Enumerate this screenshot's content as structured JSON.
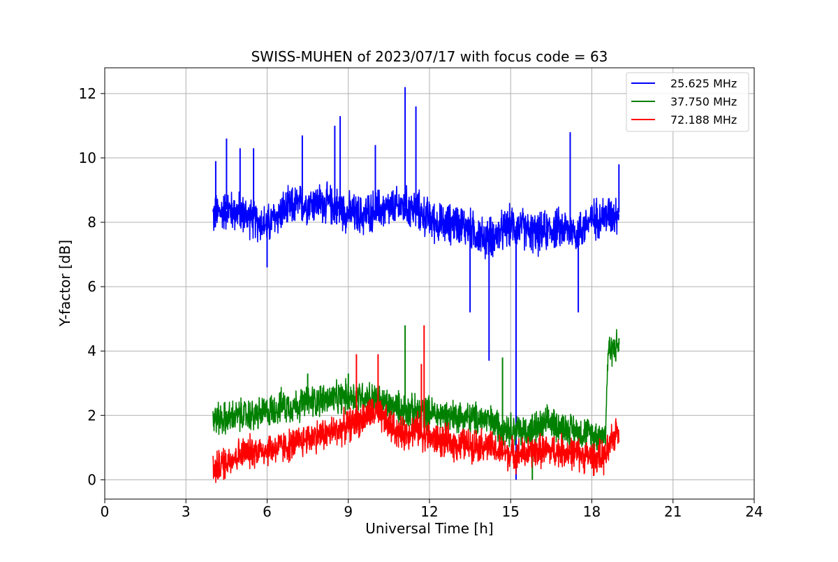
{
  "chart_data": {
    "type": "line",
    "title": "SWISS-MUHEN of 2023/07/17 with focus code = 63",
    "xlabel": "Universal Time [h]",
    "ylabel": "Y-factor [dB]",
    "xlim": [
      0,
      24
    ],
    "ylim": [
      -0.6,
      12.8
    ],
    "xticks": [
      "0",
      "3",
      "6",
      "9",
      "12",
      "15",
      "18",
      "21",
      "24"
    ],
    "yticks": [
      "0",
      "2",
      "4",
      "6",
      "8",
      "10",
      "12"
    ],
    "grid": true,
    "legend_position": "top-right",
    "series": [
      {
        "name": "25.625 MHz",
        "color": "#0000ff",
        "points": [
          [
            4.0,
            8.2
          ],
          [
            4.5,
            8.4
          ],
          [
            5.0,
            8.3
          ],
          [
            5.5,
            8.1
          ],
          [
            6.0,
            7.9
          ],
          [
            6.5,
            8.3
          ],
          [
            7.0,
            8.5
          ],
          [
            7.5,
            8.6
          ],
          [
            8.0,
            8.6
          ],
          [
            8.5,
            8.5
          ],
          [
            9.0,
            8.3
          ],
          [
            9.5,
            8.2
          ],
          [
            10.0,
            8.4
          ],
          [
            10.5,
            8.4
          ],
          [
            11.0,
            8.5
          ],
          [
            11.5,
            8.4
          ],
          [
            12.0,
            8.1
          ],
          [
            12.5,
            7.9
          ],
          [
            13.0,
            8.0
          ],
          [
            13.5,
            7.8
          ],
          [
            14.0,
            7.5
          ],
          [
            14.5,
            7.6
          ],
          [
            15.0,
            7.9
          ],
          [
            15.5,
            7.8
          ],
          [
            16.0,
            7.6
          ],
          [
            16.5,
            7.8
          ],
          [
            17.0,
            7.8
          ],
          [
            17.5,
            7.7
          ],
          [
            18.0,
            8.1
          ],
          [
            18.5,
            8.2
          ],
          [
            19.0,
            8.3
          ]
        ],
        "spikes": [
          [
            4.1,
            9.9
          ],
          [
            4.5,
            10.6
          ],
          [
            5.0,
            10.3
          ],
          [
            5.5,
            10.3
          ],
          [
            6.0,
            6.6
          ],
          [
            7.3,
            10.7
          ],
          [
            8.5,
            11.0
          ],
          [
            8.7,
            11.3
          ],
          [
            10.0,
            10.4
          ],
          [
            11.1,
            12.2
          ],
          [
            11.5,
            11.6
          ],
          [
            13.5,
            5.2
          ],
          [
            14.2,
            3.7
          ],
          [
            15.2,
            0.0
          ],
          [
            17.2,
            10.8
          ],
          [
            17.5,
            5.2
          ],
          [
            19.0,
            9.8
          ]
        ]
      },
      {
        "name": "37.750 MHz",
        "color": "#008000",
        "points": [
          [
            4.0,
            1.9
          ],
          [
            4.5,
            1.9
          ],
          [
            5.0,
            2.0
          ],
          [
            5.5,
            2.0
          ],
          [
            6.0,
            2.1
          ],
          [
            6.5,
            2.3
          ],
          [
            7.0,
            2.3
          ],
          [
            7.5,
            2.4
          ],
          [
            8.0,
            2.5
          ],
          [
            8.5,
            2.5
          ],
          [
            9.0,
            2.6
          ],
          [
            9.5,
            2.6
          ],
          [
            10.0,
            2.5
          ],
          [
            10.5,
            2.3
          ],
          [
            11.0,
            2.2
          ],
          [
            11.5,
            2.1
          ],
          [
            12.0,
            2.1
          ],
          [
            12.5,
            2.0
          ],
          [
            13.0,
            2.0
          ],
          [
            13.5,
            1.9
          ],
          [
            14.0,
            1.9
          ],
          [
            14.5,
            1.7
          ],
          [
            15.0,
            1.6
          ],
          [
            15.5,
            1.5
          ],
          [
            16.0,
            1.6
          ],
          [
            16.5,
            1.8
          ],
          [
            17.0,
            1.6
          ],
          [
            17.5,
            1.5
          ],
          [
            18.0,
            1.4
          ],
          [
            18.5,
            1.4
          ],
          [
            18.6,
            4.0
          ],
          [
            19.0,
            4.2
          ]
        ],
        "spikes": [
          [
            7.5,
            3.3
          ],
          [
            9.0,
            3.3
          ],
          [
            11.1,
            4.8
          ],
          [
            14.7,
            3.8
          ],
          [
            15.8,
            0.0
          ],
          [
            19.0,
            4.4
          ]
        ]
      },
      {
        "name": "72.188 MHz",
        "color": "#ff0000",
        "points": [
          [
            4.0,
            0.3
          ],
          [
            4.5,
            0.6
          ],
          [
            5.0,
            0.8
          ],
          [
            5.5,
            0.9
          ],
          [
            6.0,
            0.95
          ],
          [
            6.5,
            1.0
          ],
          [
            7.0,
            1.1
          ],
          [
            7.5,
            1.3
          ],
          [
            8.0,
            1.4
          ],
          [
            8.5,
            1.5
          ],
          [
            9.0,
            1.7
          ],
          [
            9.5,
            1.9
          ],
          [
            10.0,
            2.1
          ],
          [
            10.5,
            1.7
          ],
          [
            11.0,
            1.4
          ],
          [
            11.5,
            1.6
          ],
          [
            12.0,
            1.3
          ],
          [
            12.5,
            1.2
          ],
          [
            13.0,
            1.1
          ],
          [
            13.5,
            1.1
          ],
          [
            14.0,
            1.1
          ],
          [
            14.5,
            0.9
          ],
          [
            15.0,
            0.8
          ],
          [
            15.5,
            0.8
          ],
          [
            16.0,
            0.9
          ],
          [
            16.5,
            0.9
          ],
          [
            17.0,
            0.9
          ],
          [
            17.5,
            0.8
          ],
          [
            18.0,
            0.7
          ],
          [
            18.5,
            0.7
          ],
          [
            19.0,
            1.7
          ]
        ],
        "spikes": [
          [
            9.3,
            3.9
          ],
          [
            10.1,
            3.9
          ],
          [
            11.7,
            3.6
          ],
          [
            11.8,
            4.8
          ],
          [
            4.4,
            0.0
          ]
        ]
      }
    ]
  }
}
